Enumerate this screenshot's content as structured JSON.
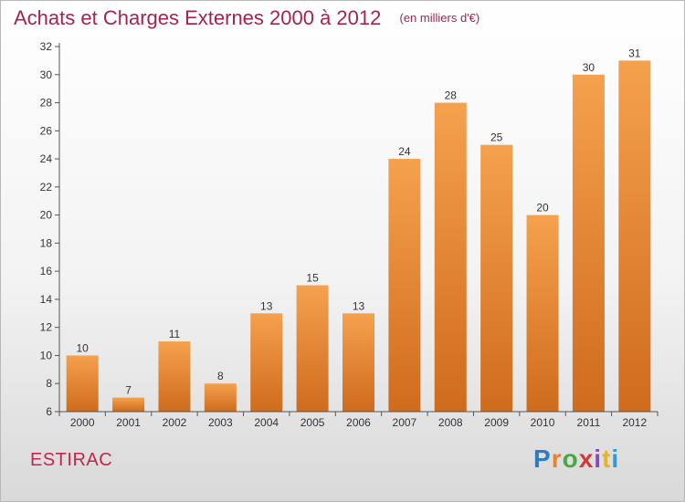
{
  "header": {
    "title": "Achats et Charges Externes 2000 à 2012",
    "unit": "(en milliers d'€)"
  },
  "footer": {
    "place": "ESTIRAC",
    "logo_text": "Proxiti",
    "logo_colors": [
      "#2e7bc4",
      "#e6832a",
      "#4aa844",
      "#d23a3a",
      "#8a4bb8",
      "#e3b32a",
      "#2e9bd6"
    ]
  },
  "colors": {
    "bar_top": "#f5a14e",
    "bar_bottom": "#cf6b1c",
    "axis": "#555555",
    "grid": "#dddddd",
    "tick_text": "#333333"
  },
  "chart_data": {
    "type": "bar",
    "title": "Achats et Charges Externes 2000 à 2012",
    "subtitle": "(en milliers d'€)",
    "categories": [
      "2000",
      "2001",
      "2002",
      "2003",
      "2004",
      "2005",
      "2006",
      "2007",
      "2008",
      "2009",
      "2010",
      "2011",
      "2012"
    ],
    "values": [
      10,
      7,
      11,
      8,
      13,
      15,
      13,
      24,
      28,
      25,
      20,
      30,
      31
    ],
    "ylim": [
      6,
      32
    ],
    "yticks": [
      6,
      8,
      10,
      12,
      14,
      16,
      18,
      20,
      22,
      24,
      26,
      28,
      30,
      32
    ],
    "xlabel": "",
    "ylabel": "",
    "legend": "none",
    "grid": false
  }
}
